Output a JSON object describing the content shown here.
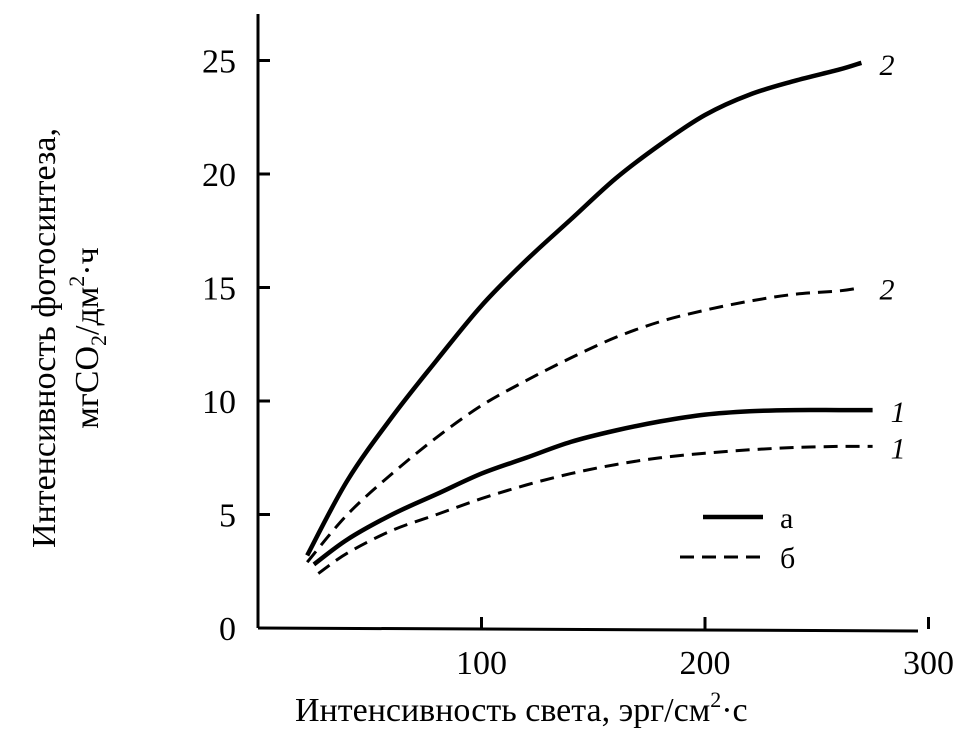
{
  "chart_data": {
    "type": "line",
    "xlabel_main": "Интенсивность света, эрг/см",
    "xlabel_sup": "2",
    "xlabel_tail": "·с",
    "ylabel_line1": "Интенсивность фотосинтеза,",
    "ylabel_line2_a": "мгCO",
    "ylabel_line2_sub": "2",
    "ylabel_line2_b": "/дм",
    "ylabel_line2_sup": "2",
    "ylabel_line2_c": "·ч",
    "xlim": [
      0,
      300
    ],
    "ylim": [
      0,
      25
    ],
    "x_ticks": [
      100,
      200,
      300
    ],
    "x_tick_labels": [
      "100",
      "200",
      "300"
    ],
    "y_ticks": [
      0,
      5,
      10,
      15,
      20,
      25
    ],
    "y_tick_labels": [
      "0",
      "5",
      "10",
      "15",
      "20",
      "25"
    ],
    "grid": false,
    "legend_position": "bottom-right",
    "legend": [
      {
        "label": "а",
        "style": "solid"
      },
      {
        "label": "б",
        "style": "dashed"
      }
    ],
    "series": [
      {
        "label": "2",
        "style": "solid",
        "x": [
          22,
          40,
          60,
          80,
          100,
          120,
          140,
          160,
          180,
          200,
          220,
          240,
          260,
          270
        ],
        "y": [
          3.2,
          6.5,
          9.3,
          11.8,
          14.2,
          16.2,
          18.0,
          19.8,
          21.3,
          22.6,
          23.5,
          24.1,
          24.6,
          24.9
        ]
      },
      {
        "label": "2",
        "style": "dashed",
        "x": [
          22,
          40,
          60,
          80,
          100,
          120,
          140,
          160,
          180,
          200,
          220,
          240,
          260,
          270
        ],
        "y": [
          2.9,
          5.0,
          6.8,
          8.4,
          9.8,
          10.9,
          11.9,
          12.8,
          13.5,
          14.0,
          14.4,
          14.7,
          14.85,
          15.0
        ]
      },
      {
        "label": "1",
        "style": "solid",
        "x": [
          25,
          40,
          60,
          80,
          100,
          120,
          140,
          160,
          180,
          200,
          220,
          240,
          260,
          275
        ],
        "y": [
          2.8,
          3.9,
          5.0,
          5.9,
          6.8,
          7.5,
          8.2,
          8.7,
          9.1,
          9.4,
          9.55,
          9.6,
          9.6,
          9.6
        ]
      },
      {
        "label": "1",
        "style": "dashed",
        "x": [
          27,
          40,
          60,
          80,
          100,
          120,
          140,
          160,
          180,
          200,
          220,
          240,
          260,
          275
        ],
        "y": [
          2.4,
          3.3,
          4.3,
          5.0,
          5.7,
          6.3,
          6.8,
          7.2,
          7.5,
          7.7,
          7.85,
          7.95,
          8.0,
          8.0
        ]
      }
    ]
  }
}
